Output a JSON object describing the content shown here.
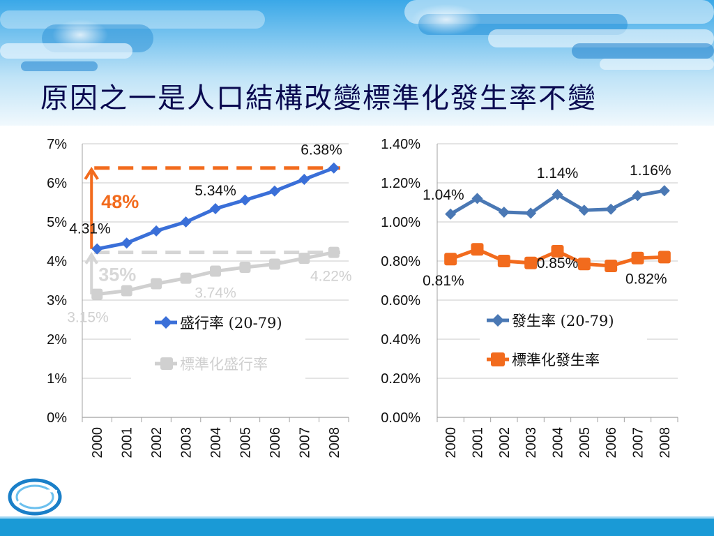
{
  "slide": {
    "title": "原因之一是人口結構改變標準化發生率不變",
    "colors": {
      "blue": "#4472c4",
      "orange": "#f26b1d",
      "gray": "#d0d0d0",
      "footer": "#1a9ad6"
    }
  },
  "chart_data": [
    {
      "type": "line",
      "x": [
        "2000",
        "2001",
        "2002",
        "2003",
        "2004",
        "2005",
        "2006",
        "2007",
        "2008"
      ],
      "ylim": [
        0,
        7
      ],
      "yticks": [
        "0%",
        "1%",
        "2%",
        "3%",
        "4%",
        "5%",
        "6%",
        "7%"
      ],
      "series": [
        {
          "name": "盛行率 (20-79)",
          "color": "#3a6fd8",
          "values": [
            4.31,
            4.46,
            4.77,
            5.0,
            5.34,
            5.56,
            5.79,
            6.09,
            6.38
          ]
        },
        {
          "name": "標準化盛行率",
          "color": "#d0d0d0",
          "values": [
            3.15,
            3.24,
            3.42,
            3.56,
            3.74,
            3.84,
            3.92,
            4.07,
            4.22
          ]
        }
      ],
      "data_labels": [
        {
          "text": "6.38%",
          "series": 0,
          "index": 8
        },
        {
          "text": "5.34%",
          "series": 0,
          "index": 4
        },
        {
          "text": "4.31%",
          "series": 0,
          "index": 0
        },
        {
          "text": "3.15%",
          "series": 1,
          "index": 0
        },
        {
          "text": "3.74%",
          "series": 1,
          "index": 4
        },
        {
          "text": "4.22%",
          "series": 1,
          "index": 8
        }
      ],
      "annotations": [
        {
          "text": "48%",
          "color": "#f26b1d"
        },
        {
          "text": "35%",
          "color": "#d8d8d8"
        }
      ]
    },
    {
      "type": "line",
      "x": [
        "2000",
        "2001",
        "2002",
        "2003",
        "2004",
        "2005",
        "2006",
        "2007",
        "2008"
      ],
      "ylim": [
        0,
        1.4
      ],
      "yticks": [
        "0.00%",
        "0.20%",
        "0.40%",
        "0.60%",
        "0.80%",
        "1.00%",
        "1.20%",
        "1.40%"
      ],
      "series": [
        {
          "name": "發生率 (20-79)",
          "color": "#4a78b4",
          "values": [
            1.04,
            1.12,
            1.05,
            1.045,
            1.14,
            1.06,
            1.065,
            1.135,
            1.16
          ]
        },
        {
          "name": "標準化發生率",
          "color": "#f26b1d",
          "values": [
            0.81,
            0.86,
            0.8,
            0.79,
            0.85,
            0.785,
            0.775,
            0.815,
            0.82
          ]
        }
      ],
      "data_labels": [
        {
          "text": "1.04%",
          "series": 0,
          "index": 0
        },
        {
          "text": "1.14%",
          "series": 0,
          "index": 4
        },
        {
          "text": "1.16%",
          "series": 0,
          "index": 8
        },
        {
          "text": "0.81%",
          "series": 1,
          "index": 0
        },
        {
          "text": "0.85%",
          "series": 1,
          "index": 4
        },
        {
          "text": "0.82%",
          "series": 1,
          "index": 8
        }
      ]
    }
  ]
}
